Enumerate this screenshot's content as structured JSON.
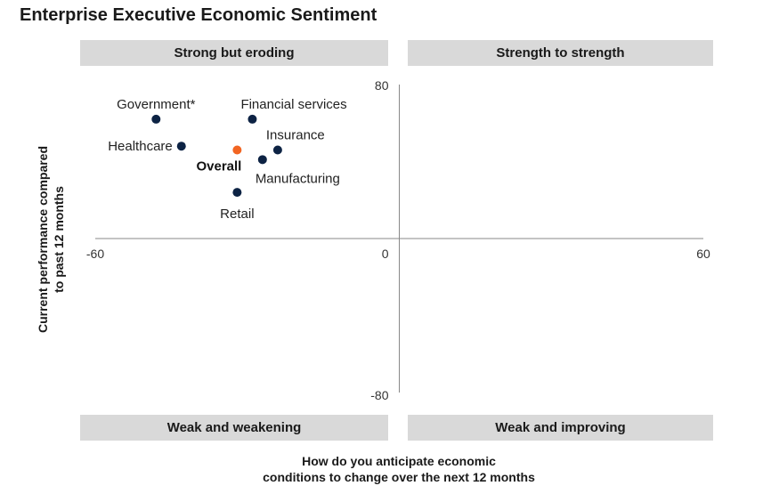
{
  "chart_data": {
    "type": "scatter",
    "title": "Enterprise Executive Economic Sentiment",
    "xlabel_lines": [
      "How do you anticipate economic",
      "conditions to change over the next 12 months"
    ],
    "ylabel_lines": [
      "Current performance compared",
      "to past 12 months"
    ],
    "xlim": [
      -60,
      60
    ],
    "ylim": [
      -80,
      80
    ],
    "x_ticks": [
      {
        "value": -60,
        "label": "-60"
      },
      {
        "value": 0,
        "label": "0"
      },
      {
        "value": 60,
        "label": "60"
      }
    ],
    "y_ticks": [
      {
        "value": 80,
        "label": "80"
      },
      {
        "value": -80,
        "label": "-80"
      }
    ],
    "grid": false,
    "quadrants": {
      "top_left": "Strong but eroding",
      "top_right": "Strength to strength",
      "bottom_left": "Weak and weakening",
      "bottom_right": "Weak and improving"
    },
    "points": [
      {
        "name": "Government*",
        "x": -48,
        "y": 62,
        "color": "#0d2344",
        "bold": false,
        "label_pos": "above"
      },
      {
        "name": "Financial services",
        "x": -29,
        "y": 62,
        "color": "#0d2344",
        "bold": false,
        "label_pos": "above-right"
      },
      {
        "name": "Healthcare",
        "x": -43,
        "y": 48,
        "color": "#0d2344",
        "bold": false,
        "label_pos": "left"
      },
      {
        "name": "Insurance",
        "x": -24,
        "y": 46,
        "color": "#0d2344",
        "bold": false,
        "label_pos": "above-right"
      },
      {
        "name": "Overall",
        "x": -32,
        "y": 46,
        "color": "#f26522",
        "bold": true,
        "label_pos": "below-left"
      },
      {
        "name": "Manufacturing",
        "x": -27,
        "y": 41,
        "color": "#0d2344",
        "bold": false,
        "label_pos": "below-right"
      },
      {
        "name": "Retail",
        "x": -32,
        "y": 24,
        "color": "#0d2344",
        "bold": false,
        "label_pos": "below"
      }
    ]
  }
}
